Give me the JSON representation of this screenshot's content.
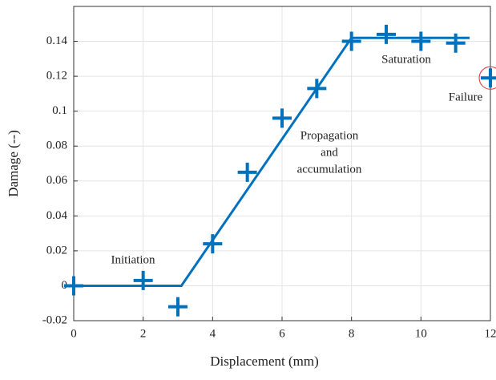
{
  "chart_data": {
    "type": "scatter",
    "x_label": "Displacement (mm)",
    "y_label": "Damage (--)",
    "xlim": [
      0,
      12
    ],
    "xticks": [
      0,
      2,
      4,
      6,
      8,
      10,
      12
    ],
    "ylim": [
      -0.02,
      0.16
    ],
    "yticks": [
      -0.02,
      0,
      0.02,
      0.04,
      0.06,
      0.08,
      0.1,
      0.12,
      0.14
    ],
    "grid": true,
    "points": {
      "color": "#0072bd",
      "x": [
        0,
        2,
        3,
        4,
        5,
        6,
        7,
        8,
        9,
        10,
        11,
        12
      ],
      "values": [
        0,
        0.003,
        -0.012,
        0.024,
        0.065,
        0.096,
        0.113,
        0.14,
        0.144,
        0.14,
        0.139,
        0.119
      ]
    },
    "fit": {
      "color": "#0072bd",
      "x": [
        0,
        3.1,
        8,
        11.4
      ],
      "values": [
        0,
        0,
        0.142,
        0.142
      ]
    },
    "highlight_color": "#e03030",
    "annotations": [
      {
        "lines": [
          "Initiation"
        ]
      },
      {
        "lines": [
          "Propagation",
          "and",
          "accumulation"
        ]
      },
      {
        "lines": [
          "Saturation"
        ]
      },
      {
        "lines": [
          "Failure"
        ]
      }
    ]
  }
}
